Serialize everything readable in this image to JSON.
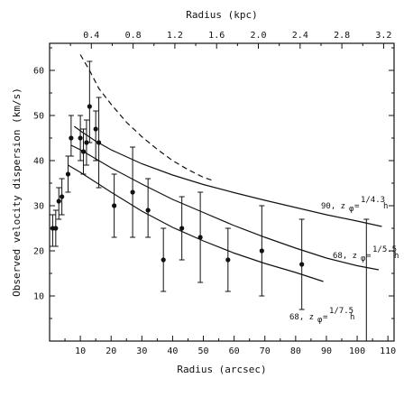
{
  "chart_data": {
    "type": "scatter",
    "xlabel": "Radius (arcsec)",
    "x2label": "Radius (kpc)",
    "ylabel": "Observed velocity dispersion (km/s)",
    "xlim": [
      0,
      112
    ],
    "ylim": [
      0,
      66
    ],
    "x2lim": [
      0,
      3.3
    ],
    "xticks": [
      10,
      20,
      30,
      40,
      50,
      60,
      70,
      80,
      90,
      100,
      110
    ],
    "x2ticks": [
      0.4,
      0.8,
      1.2,
      1.6,
      2.0,
      2.4,
      2.8,
      3.2
    ],
    "yticks": [
      10,
      20,
      30,
      40,
      50,
      60
    ],
    "x2tick_labels": [
      "0.4",
      "0.8",
      "1.2",
      "1.6",
      "2.0",
      "2.4",
      "2.8",
      "3.2"
    ],
    "points": [
      {
        "x": 1,
        "y": 25,
        "ylo": 21,
        "yhi": 28
      },
      {
        "x": 2,
        "y": 25,
        "ylo": 21,
        "yhi": 29
      },
      {
        "x": 3,
        "y": 31,
        "ylo": 27,
        "yhi": 34
      },
      {
        "x": 4,
        "y": 32,
        "ylo": 28,
        "yhi": 36
      },
      {
        "x": 6,
        "y": 37,
        "ylo": 33,
        "yhi": 41
      },
      {
        "x": 7,
        "y": 45,
        "ylo": 41,
        "yhi": 50
      },
      {
        "x": 10,
        "y": 45,
        "ylo": 40,
        "yhi": 50
      },
      {
        "x": 11,
        "y": 42,
        "ylo": 37,
        "yhi": 47
      },
      {
        "x": 12,
        "y": 44,
        "ylo": 39,
        "yhi": 49
      },
      {
        "x": 13,
        "y": 52,
        "ylo": 44,
        "yhi": 62
      },
      {
        "x": 15,
        "y": 47,
        "ylo": 40,
        "yhi": 51
      },
      {
        "x": 16,
        "y": 44,
        "ylo": 34,
        "yhi": 54
      },
      {
        "x": 21,
        "y": 30,
        "ylo": 23,
        "yhi": 37
      },
      {
        "x": 27,
        "y": 33,
        "ylo": 23,
        "yhi": 43
      },
      {
        "x": 32,
        "y": 29,
        "ylo": 23,
        "yhi": 36
      },
      {
        "x": 37,
        "y": 18,
        "ylo": 11,
        "yhi": 25
      },
      {
        "x": 43,
        "y": 25,
        "ylo": 18,
        "yhi": 32
      },
      {
        "x": 49,
        "y": 23,
        "ylo": 13,
        "yhi": 33
      },
      {
        "x": 58,
        "y": 18,
        "ylo": 11,
        "yhi": 25
      },
      {
        "x": 69,
        "y": 20,
        "ylo": 10,
        "yhi": 30
      },
      {
        "x": 82,
        "y": 17,
        "ylo": 7,
        "yhi": 27
      },
      {
        "x": 103,
        "y": 0,
        "ylo": 0,
        "yhi": 27
      }
    ],
    "curves": [
      {
        "style": "solid",
        "label": "90, z",
        "label_frac": "1/4.3",
        "points": [
          [
            8,
            47.6
          ],
          [
            10,
            46.6
          ],
          [
            15,
            44.3
          ],
          [
            20,
            42.4
          ],
          [
            30,
            39.3
          ],
          [
            40,
            36.8
          ],
          [
            50,
            34.7
          ],
          [
            60,
            32.9
          ],
          [
            70,
            31.2
          ],
          [
            80,
            29.6
          ],
          [
            90,
            28.0
          ],
          [
            100,
            26.6
          ],
          [
            108,
            25.4
          ]
        ]
      },
      {
        "style": "solid",
        "label": "68, z",
        "label_frac": "1/5.5",
        "points": [
          [
            7,
            43.4
          ],
          [
            10,
            42.4
          ],
          [
            15,
            40.4
          ],
          [
            20,
            38.4
          ],
          [
            30,
            34.8
          ],
          [
            40,
            31.4
          ],
          [
            50,
            28.5
          ],
          [
            60,
            25.6
          ],
          [
            70,
            23.0
          ],
          [
            80,
            20.6
          ],
          [
            90,
            18.4
          ],
          [
            100,
            16.7
          ],
          [
            107,
            15.8
          ]
        ]
      },
      {
        "style": "solid",
        "label": "68, z",
        "label_frac": "1/7.5",
        "points": [
          [
            6,
            39.0
          ],
          [
            10,
            37.4
          ],
          [
            15,
            35.2
          ],
          [
            20,
            33.0
          ],
          [
            30,
            28.8
          ],
          [
            40,
            25.2
          ],
          [
            50,
            22.2
          ],
          [
            60,
            19.5
          ],
          [
            70,
            17.2
          ],
          [
            80,
            15.2
          ],
          [
            89,
            13.2
          ]
        ]
      },
      {
        "style": "dashed",
        "label": "",
        "points": [
          [
            10,
            63.5
          ],
          [
            13,
            60
          ],
          [
            16,
            56
          ],
          [
            20,
            52.5
          ],
          [
            25,
            48.5
          ],
          [
            30,
            45.3
          ],
          [
            35,
            42.5
          ],
          [
            40,
            40.0
          ],
          [
            45,
            38.0
          ],
          [
            50,
            36.3
          ],
          [
            53,
            35.6
          ]
        ]
      }
    ]
  },
  "text": {
    "xlabel": "Radius (arcsec)",
    "x2label": "Radius (kpc)",
    "ylabel": "Observed velocity dispersion (km/s)",
    "curve1_label": "90, z",
    "curve1_frac": "1/4.3",
    "curve2_label": "68, z",
    "curve2_frac": "1/5.5",
    "curve3_label": "68, z",
    "curve3_frac": "1/7.5",
    "phi": "φ",
    "h": "h"
  }
}
